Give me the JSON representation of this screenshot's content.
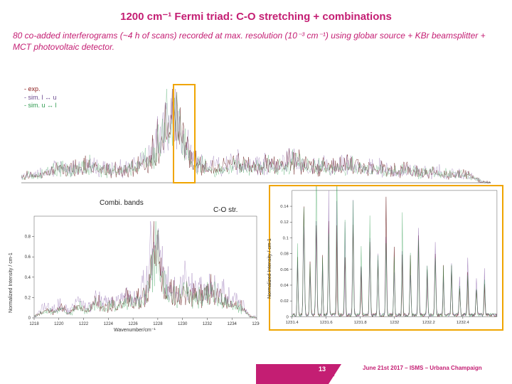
{
  "title": "1200 cm⁻¹ Fermi triad: C-O stretching + combinations",
  "subtitle": "80 co-added interferograms (~4 h of scans) recorded at max. resolution (10⁻³ cm⁻¹) using globar source + KBr beamsplitter + MCT photovoltaic detector.",
  "legend": {
    "l1": "- exp.",
    "l2": "- sim. l ↔ u",
    "l3": "- sim. u ↔ l"
  },
  "labels": {
    "combi": "Combi. bands",
    "co": "C-O str."
  },
  "footer": {
    "page": "13",
    "text": "June 21st 2017 – ISMS – Urbana Champaign"
  },
  "axes": {
    "ylabel_top": "Normalized Intensity / cm-1",
    "ylabel_br": "Normalized Intensity / cm-1",
    "xlabel": "Wavenumber/cm⁻¹"
  },
  "top_chart": {
    "type": "spectrum",
    "xlim": [
      1216,
      1240
    ],
    "n": 660,
    "colors": {
      "exp": "#6b2020",
      "sim1": "#7a4d9e",
      "sim2": "#2e9b4f"
    },
    "envelope_peaks": [
      {
        "x": 0.02,
        "h": 0.25
      },
      {
        "x": 0.08,
        "h": 0.45
      },
      {
        "x": 0.14,
        "h": 0.55
      },
      {
        "x": 0.2,
        "h": 0.4
      },
      {
        "x": 0.26,
        "h": 0.6
      },
      {
        "x": 0.31,
        "h": 0.72
      },
      {
        "x": 0.32,
        "h": 0.95
      },
      {
        "x": 0.34,
        "h": 0.7
      },
      {
        "x": 0.4,
        "h": 0.5
      },
      {
        "x": 0.46,
        "h": 0.62
      },
      {
        "x": 0.52,
        "h": 0.55
      },
      {
        "x": 0.58,
        "h": 0.68
      },
      {
        "x": 0.64,
        "h": 0.5
      },
      {
        "x": 0.7,
        "h": 0.58
      },
      {
        "x": 0.76,
        "h": 0.45
      },
      {
        "x": 0.82,
        "h": 0.4
      },
      {
        "x": 0.88,
        "h": 0.35
      },
      {
        "x": 0.94,
        "h": 0.28
      }
    ]
  },
  "bl_chart": {
    "type": "spectrum",
    "xlim": [
      1218,
      1236
    ],
    "xticks": [
      1218,
      1220,
      1222,
      1224,
      1226,
      1228,
      1230,
      1232,
      1234,
      1236
    ],
    "ylim": [
      0,
      1.0
    ],
    "yticks": [
      0,
      0.2,
      0.4,
      0.6,
      0.8
    ],
    "n": 345,
    "colors": {
      "exp": "#6b2020",
      "sim1": "#7a4d9e",
      "sim2": "#2e9b4f"
    },
    "envelope_peaks": [
      {
        "x": 0.05,
        "h": 0.15
      },
      {
        "x": 0.12,
        "h": 0.18
      },
      {
        "x": 0.2,
        "h": 0.22
      },
      {
        "x": 0.28,
        "h": 0.3
      },
      {
        "x": 0.35,
        "h": 0.25
      },
      {
        "x": 0.42,
        "h": 0.38
      },
      {
        "x": 0.48,
        "h": 0.32
      },
      {
        "x": 0.54,
        "h": 0.95
      },
      {
        "x": 0.56,
        "h": 0.55
      },
      {
        "x": 0.62,
        "h": 0.42
      },
      {
        "x": 0.68,
        "h": 0.48
      },
      {
        "x": 0.74,
        "h": 0.4
      },
      {
        "x": 0.8,
        "h": 0.5
      },
      {
        "x": 0.86,
        "h": 0.32
      },
      {
        "x": 0.92,
        "h": 0.22
      }
    ]
  },
  "br_chart": {
    "type": "spectrum",
    "xlim": [
      1231.4,
      1232.6
    ],
    "xticks": [
      1231.4,
      1231.6,
      1231.8,
      1232,
      1232.2,
      1232.4
    ],
    "ylim": [
      0,
      0.16
    ],
    "yticks": [
      0,
      0.02,
      0.04,
      0.06,
      0.08,
      0.1,
      0.12,
      0.14
    ],
    "n": 330,
    "colors": {
      "exp": "#6b2020",
      "sim1": "#7a4d9e",
      "sim2": "#2e9b4f"
    },
    "peaks": [
      {
        "x": 0.03,
        "h": 0.35
      },
      {
        "x": 0.06,
        "h": 0.55
      },
      {
        "x": 0.09,
        "h": 0.3
      },
      {
        "x": 0.12,
        "h": 0.75
      },
      {
        "x": 0.15,
        "h": 0.4
      },
      {
        "x": 0.18,
        "h": 0.6
      },
      {
        "x": 0.22,
        "h": 0.7
      },
      {
        "x": 0.26,
        "h": 0.45
      },
      {
        "x": 0.3,
        "h": 0.55
      },
      {
        "x": 0.34,
        "h": 0.35
      },
      {
        "x": 0.38,
        "h": 0.5
      },
      {
        "x": 0.42,
        "h": 0.4
      },
      {
        "x": 0.46,
        "h": 0.55
      },
      {
        "x": 0.5,
        "h": 0.35
      },
      {
        "x": 0.54,
        "h": 0.48
      },
      {
        "x": 0.58,
        "h": 0.3
      },
      {
        "x": 0.62,
        "h": 0.42
      },
      {
        "x": 0.66,
        "h": 0.28
      },
      {
        "x": 0.7,
        "h": 0.38
      },
      {
        "x": 0.74,
        "h": 0.25
      },
      {
        "x": 0.78,
        "h": 0.32
      },
      {
        "x": 0.82,
        "h": 0.22
      },
      {
        "x": 0.86,
        "h": 0.28
      },
      {
        "x": 0.9,
        "h": 0.18
      },
      {
        "x": 0.94,
        "h": 0.22
      }
    ]
  }
}
